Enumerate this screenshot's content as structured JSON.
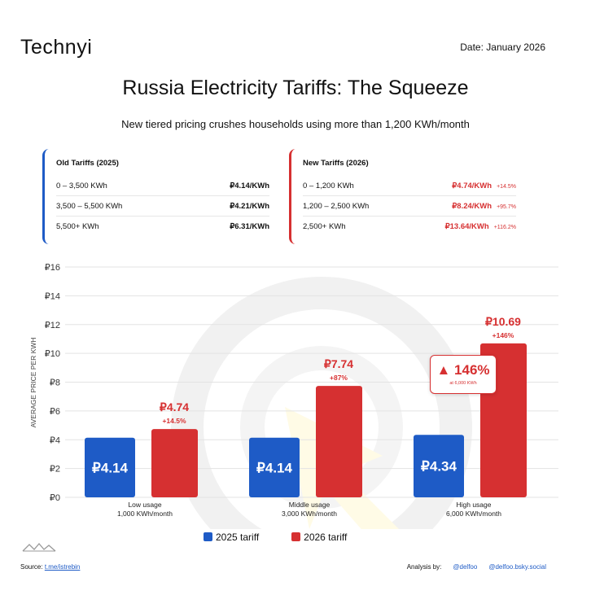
{
  "header": {
    "logo": "Technyi",
    "date": "Date: January 2026"
  },
  "title": "Russia Electricity Tariffs: The Squeeze",
  "subtitle": "New tiered pricing crushes households using more than 1,200 KWh/month",
  "old_tariffs": {
    "title": "Old Tariffs (2025)",
    "rows": [
      {
        "range": "0 – 3,500 KWh",
        "price": "₽4.14/KWh"
      },
      {
        "range": "3,500 – 5,500 KWh",
        "price": "₽4.21/KWh"
      },
      {
        "range": "5,500+ KWh",
        "price": "₽6.31/KWh"
      }
    ]
  },
  "new_tariffs": {
    "title": "New Tariffs (2026)",
    "rows": [
      {
        "range": "0 – 1,200 KWh",
        "price": "₽4.74/KWh",
        "change": "+14.5%"
      },
      {
        "range": "1,200 – 2,500 KWh",
        "price": "₽8.24/KWh",
        "change": "+95.7%"
      },
      {
        "range": "2,500+ KWh",
        "price": "₽13.64/KWh",
        "change": "+116.2%"
      }
    ]
  },
  "callout": {
    "value": "▲ 146%",
    "note": "at 6,000 KWh"
  },
  "footer": {
    "source_label": "Source:",
    "source_link": "t.me/istrebin",
    "analysis_label": "Analysis by:",
    "handle1": "@delfoo",
    "handle2": "@delfoo.bsky.social"
  },
  "colors": {
    "blue": "#1e5bc6",
    "red": "#d63031"
  },
  "chart_data": {
    "type": "bar",
    "categories": [
      [
        "Low usage",
        "1,000 KWh/month"
      ],
      [
        "Middle usage",
        "3,000 KWh/month"
      ],
      [
        "High usage",
        "6,000 KWh/month"
      ]
    ],
    "series": [
      {
        "name": "2025 tariff",
        "values": [
          4.14,
          4.14,
          4.34
        ],
        "labels": [
          "₽4.14",
          "₽4.14",
          "₽4.34"
        ]
      },
      {
        "name": "2026 tariff",
        "values": [
          4.74,
          7.74,
          10.69
        ],
        "labels": [
          "₽4.74",
          "₽7.74",
          "₽10.69"
        ],
        "changes": [
          "+14.5%",
          "+87%",
          "+146%"
        ]
      }
    ],
    "ylabel": "AVERAGE PRICE PER KWH",
    "yticks": [
      "₽0",
      "₽2",
      "₽4",
      "₽6",
      "₽8",
      "₽10",
      "₽12",
      "₽14",
      "₽16"
    ],
    "ylim": [
      0,
      16
    ],
    "grid": true,
    "legend": "bottom-center"
  }
}
